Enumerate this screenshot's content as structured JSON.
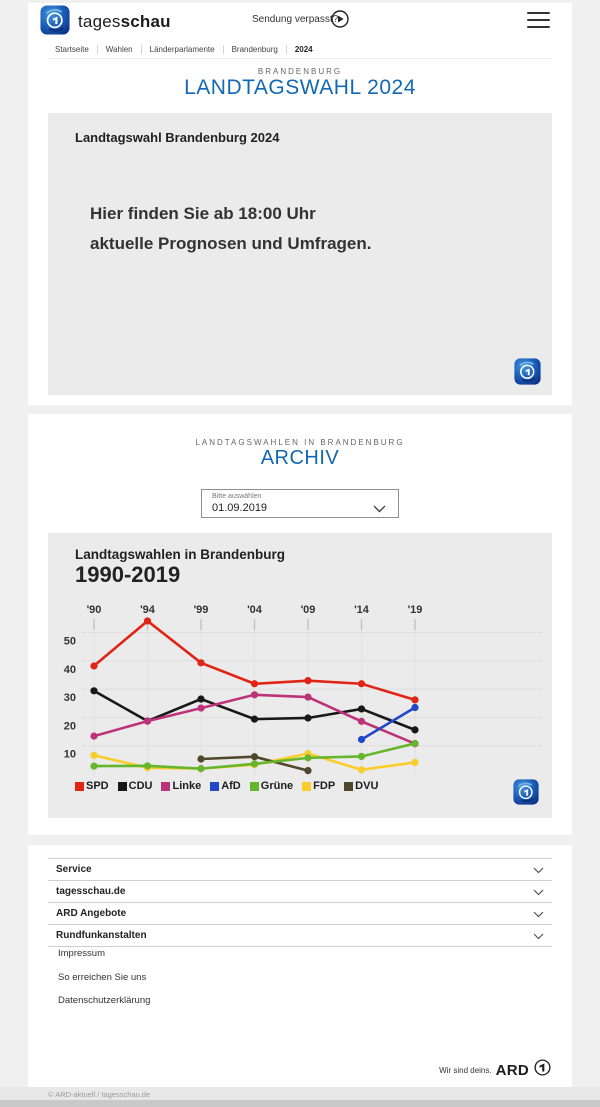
{
  "header": {
    "brand_regular": "tages",
    "brand_bold": "schau",
    "sendung_verpasst": "Sendung verpasst?",
    "breadcrumb": [
      "Startseite",
      "Wahlen",
      "Länderparlamente",
      "Brandenburg",
      "2024"
    ]
  },
  "hero": {
    "kicker": "BRANDENBURG",
    "title": "LANDTAGSWAHL 2024"
  },
  "banner": {
    "title": "Landtagswahl Brandenburg 2024",
    "message_line1": "Hier finden Sie ab 18:00 Uhr",
    "message_line2": "aktuelle Prognosen und Umfragen."
  },
  "archive": {
    "kicker": "LANDTAGSWAHLEN IN BRANDENBURG",
    "title": "ARCHIV",
    "select_label": "Bitte auswählen",
    "select_value": "01.09.2019"
  },
  "chart_data": {
    "type": "line",
    "title": "Landtagswahlen in Brandenburg",
    "subtitle": "1990-2019",
    "unit": "percent",
    "x_tick_labels": [
      "'90",
      "'94",
      "'99",
      "'04",
      "'09",
      "'14",
      "'19"
    ],
    "x_years": [
      1990,
      1994,
      1999,
      2004,
      2009,
      2014,
      2019
    ],
    "y_ticks": [
      10,
      20,
      30,
      40,
      50
    ],
    "ylim": [
      0,
      58
    ],
    "grid": true,
    "legend_position": "bottom",
    "series": [
      {
        "name": "SPD",
        "color": "#e02416",
        "values": [
          38.2,
          54.1,
          39.3,
          31.9,
          33.0,
          31.9,
          26.2
        ]
      },
      {
        "name": "CDU",
        "color": "#181818",
        "values": [
          29.4,
          18.7,
          26.5,
          19.4,
          19.8,
          23.0,
          15.6
        ]
      },
      {
        "name": "Linke",
        "color": "#bd3379",
        "values": [
          13.4,
          18.7,
          23.3,
          28.0,
          27.2,
          18.6,
          10.7
        ]
      },
      {
        "name": "AfD",
        "color": "#2148c8",
        "values": [
          null,
          null,
          null,
          null,
          null,
          12.2,
          23.5
        ]
      },
      {
        "name": "Grüne",
        "color": "#65b52d",
        "values": [
          2.8,
          2.9,
          1.9,
          3.6,
          5.7,
          6.2,
          10.8
        ]
      },
      {
        "name": "FDP",
        "color": "#f9cd2c",
        "values": [
          6.6,
          2.2,
          1.9,
          3.3,
          7.2,
          1.5,
          4.1
        ]
      },
      {
        "name": "DVU",
        "color": "#50482a",
        "values": [
          null,
          null,
          5.3,
          6.1,
          1.2,
          null,
          null
        ]
      }
    ]
  },
  "footer": {
    "accordion": [
      "Service",
      "tagesschau.de",
      "ARD Angebote",
      "Rundfunkanstalten"
    ],
    "links": [
      "Impressum",
      "So erreichen Sie uns",
      "Datenschutzerklärung"
    ],
    "ard_claim": "Wir sind deins.",
    "ard_brand": "ARD",
    "copyright": "© ARD-aktuell / tagesschau.de"
  },
  "colors": {
    "accent_blue": "#1268b4",
    "card_bg": "#ffffff",
    "box_bg": "#ebebeb",
    "page_bg": "#f0f0f0"
  }
}
